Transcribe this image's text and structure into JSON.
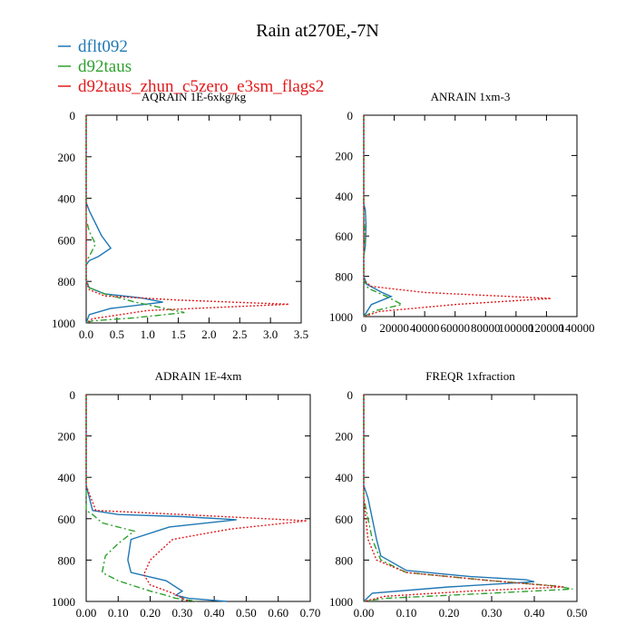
{
  "title": "Rain at270E,-7N",
  "legend": [
    {
      "name": "dflt092",
      "color": "#1f77b4",
      "dash": "solid"
    },
    {
      "name": "d92taus",
      "color": "#2ca02c",
      "dash": "dashdot"
    },
    {
      "name": "d92taus_zhun_c5zero_e3sm_flags2",
      "color": "#e31a1c",
      "dash": "dotted"
    }
  ],
  "chart_data": [
    {
      "type": "line",
      "title": "AQRAIN  1E-6xkg/kg",
      "xlim": [
        0,
        3.5
      ],
      "ylim": [
        1000,
        0
      ],
      "xticks": [
        "0.0",
        "0.5",
        "1.0",
        "1.5",
        "2.0",
        "2.5",
        "3.0",
        "3.5"
      ],
      "xtick_values": [
        0,
        0.5,
        1.0,
        1.5,
        2.0,
        2.5,
        3.0,
        3.5
      ],
      "yticks": [
        "0",
        "200",
        "400",
        "600",
        "800",
        "1000"
      ],
      "ytick_values": [
        0,
        200,
        400,
        600,
        800,
        1000
      ],
      "series": [
        {
          "name": "dflt092",
          "x": [
            0,
            0,
            0.05,
            0.15,
            0.25,
            0.4,
            0.2,
            0.05,
            0,
            0,
            0.05,
            0.3,
            0.9,
            1.25,
            0.4,
            0.05,
            0
          ],
          "y": [
            0,
            420,
            460,
            520,
            580,
            640,
            680,
            700,
            720,
            800,
            830,
            860,
            880,
            900,
            930,
            960,
            1000
          ]
        },
        {
          "name": "d92taus",
          "x": [
            0,
            0,
            0.05,
            0.15,
            0.1,
            0.05,
            0,
            0,
            0.05,
            0.3,
            0.8,
            1.6,
            0.8,
            0.1,
            0
          ],
          "y": [
            0,
            500,
            560,
            620,
            650,
            680,
            700,
            790,
            830,
            860,
            900,
            950,
            975,
            990,
            1000
          ]
        },
        {
          "name": "d92taus_zhun_c5zero_e3sm_flags2",
          "x": [
            0,
            0,
            0.05,
            0.3,
            1.5,
            3.3,
            1.0,
            0.1,
            0
          ],
          "y": [
            0,
            800,
            840,
            870,
            890,
            910,
            940,
            980,
            1000
          ]
        }
      ]
    },
    {
      "type": "line",
      "title": "ANRAIN  1xm-3",
      "xlim": [
        0,
        140000
      ],
      "ylim": [
        1000,
        0
      ],
      "xticks": [
        "0",
        "20000",
        "40000",
        "60000",
        "80000",
        "100000",
        "120000",
        "140000"
      ],
      "xtick_values": [
        0,
        20000,
        40000,
        60000,
        80000,
        100000,
        120000,
        140000
      ],
      "yticks": [
        "0",
        "200",
        "400",
        "600",
        "800",
        "1000"
      ],
      "ytick_values": [
        0,
        200,
        400,
        600,
        800,
        1000
      ],
      "series": [
        {
          "name": "dflt092",
          "x": [
            0,
            0,
            1000,
            1500,
            1000,
            0,
            0,
            2000,
            12000,
            18000,
            5000,
            0
          ],
          "y": [
            0,
            440,
            470,
            550,
            650,
            700,
            800,
            840,
            880,
            900,
            940,
            1000
          ]
        },
        {
          "name": "d92taus",
          "x": [
            0,
            0,
            1000,
            0,
            0,
            3000,
            15000,
            25000,
            8000,
            0
          ],
          "y": [
            0,
            500,
            600,
            700,
            820,
            860,
            900,
            940,
            970,
            1000
          ]
        },
        {
          "name": "d92taus_zhun_c5zero_e3sm_flags2",
          "x": [
            0,
            0,
            5000,
            40000,
            123000,
            60000,
            10000,
            0
          ],
          "y": [
            0,
            820,
            850,
            880,
            910,
            940,
            975,
            1000
          ]
        }
      ]
    },
    {
      "type": "line",
      "title": "ADRAIN  1E-4xm",
      "xlim": [
        0,
        0.7
      ],
      "ylim": [
        1000,
        0
      ],
      "xticks": [
        "0.00",
        "0.10",
        "0.20",
        "0.30",
        "0.40",
        "0.50",
        "0.60",
        "0.70"
      ],
      "xtick_values": [
        0,
        0.1,
        0.2,
        0.3,
        0.4,
        0.5,
        0.6,
        0.7
      ],
      "yticks": [
        "0",
        "200",
        "400",
        "600",
        "800",
        "1000"
      ],
      "ytick_values": [
        0,
        200,
        400,
        600,
        800,
        1000
      ],
      "series": [
        {
          "name": "dflt092",
          "x": [
            0,
            0,
            0.02,
            0.1,
            0.3,
            0.47,
            0.26,
            0.14,
            0.13,
            0.14,
            0.25,
            0.3,
            0.28,
            0.32,
            0.44
          ],
          "y": [
            0,
            440,
            560,
            580,
            590,
            605,
            640,
            700,
            800,
            860,
            900,
            950,
            970,
            985,
            1000
          ]
        },
        {
          "name": "d92taus",
          "x": [
            0,
            0,
            0.02,
            0.05,
            0.15,
            0.1,
            0.06,
            0.05,
            0.1,
            0.2,
            0.25,
            0.28,
            0.35
          ],
          "y": [
            0,
            560,
            580,
            620,
            660,
            720,
            780,
            860,
            900,
            950,
            970,
            985,
            1000
          ]
        },
        {
          "name": "d92taus_zhun_c5zero_e3sm_flags2",
          "x": [
            0,
            0,
            0.03,
            0.3,
            0.69,
            0.45,
            0.27,
            0.2,
            0.18,
            0.2,
            0.27,
            0.32
          ],
          "y": [
            0,
            440,
            560,
            580,
            610,
            650,
            700,
            800,
            870,
            920,
            960,
            1000
          ]
        }
      ]
    },
    {
      "type": "line",
      "title": "FREQR  1xfraction",
      "xlim": [
        0,
        0.5
      ],
      "ylim": [
        1000,
        0
      ],
      "xticks": [
        "0.00",
        "0.10",
        "0.20",
        "0.30",
        "0.40",
        "0.50"
      ],
      "xtick_values": [
        0,
        0.1,
        0.2,
        0.3,
        0.4,
        0.5
      ],
      "yticks": [
        "0",
        "200",
        "400",
        "600",
        "800",
        "1000"
      ],
      "ytick_values": [
        0,
        200,
        400,
        600,
        800,
        1000
      ],
      "series": [
        {
          "name": "dflt092",
          "x": [
            0,
            0,
            0.01,
            0.02,
            0.03,
            0.04,
            0.1,
            0.25,
            0.38,
            0.4,
            0.2,
            0.02,
            0
          ],
          "y": [
            0,
            440,
            500,
            600,
            700,
            780,
            850,
            880,
            895,
            905,
            930,
            960,
            1000
          ]
        },
        {
          "name": "d92taus",
          "x": [
            0,
            0,
            0.01,
            0.02,
            0.04,
            0.1,
            0.3,
            0.45,
            0.49,
            0.3,
            0.05,
            0
          ],
          "y": [
            0,
            500,
            600,
            700,
            800,
            860,
            900,
            925,
            940,
            960,
            985,
            1000
          ]
        },
        {
          "name": "d92taus_zhun_c5zero_e3sm_flags2",
          "x": [
            0,
            0,
            0.01,
            0.03,
            0.1,
            0.3,
            0.47,
            0.25,
            0.05,
            0
          ],
          "y": [
            0,
            500,
            700,
            800,
            860,
            900,
            930,
            950,
            975,
            1000
          ]
        }
      ]
    }
  ]
}
